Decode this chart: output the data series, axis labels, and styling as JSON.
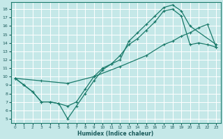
{
  "xlabel": "Humidex (Indice chaleur)",
  "xlim": [
    -0.5,
    23.5
  ],
  "ylim": [
    4.5,
    18.8
  ],
  "bg_color": "#c5e8e8",
  "grid_color": "#ffffff",
  "line_color": "#1a7a6a",
  "xticks": [
    0,
    1,
    2,
    3,
    4,
    5,
    6,
    7,
    8,
    9,
    10,
    11,
    12,
    13,
    14,
    15,
    16,
    17,
    18,
    19,
    20,
    21,
    22,
    23
  ],
  "yticks": [
    5,
    6,
    7,
    8,
    9,
    10,
    11,
    12,
    13,
    14,
    15,
    16,
    17,
    18
  ],
  "curve1_x": [
    0,
    1,
    2,
    3,
    4,
    5,
    6,
    7,
    8,
    9,
    10,
    11,
    12,
    13,
    14,
    15,
    16,
    17,
    18,
    19,
    20,
    23
  ],
  "curve1_y": [
    9.8,
    9.0,
    8.2,
    7.0,
    7.0,
    6.8,
    5.0,
    6.5,
    8.0,
    9.5,
    10.8,
    11.5,
    12.0,
    14.2,
    15.2,
    16.2,
    17.2,
    18.2,
    18.5,
    17.8,
    16.0,
    13.8
  ],
  "curve2_x": [
    0,
    1,
    2,
    3,
    4,
    5,
    6,
    7,
    8,
    9,
    10,
    11,
    12,
    13,
    14,
    15,
    16,
    17,
    18,
    19,
    20,
    21,
    22,
    23
  ],
  "curve2_y": [
    9.8,
    9.0,
    8.2,
    7.0,
    7.0,
    6.8,
    6.5,
    7.0,
    8.5,
    10.0,
    11.0,
    11.5,
    12.5,
    13.8,
    14.5,
    15.5,
    16.5,
    17.8,
    18.0,
    17.2,
    13.8,
    14.0,
    13.8,
    13.5
  ],
  "curve3_x": [
    0,
    3,
    6,
    9,
    12,
    15,
    17,
    18,
    19,
    20,
    21,
    22,
    23
  ],
  "curve3_y": [
    9.8,
    9.5,
    9.2,
    10.0,
    11.2,
    12.5,
    13.8,
    14.2,
    14.8,
    15.2,
    15.8,
    16.2,
    13.5
  ]
}
